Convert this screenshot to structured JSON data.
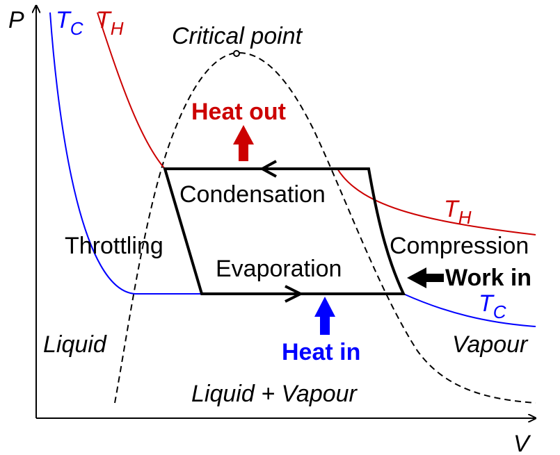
{
  "axes": {
    "x_label": "V",
    "y_label": "P"
  },
  "isotherms": {
    "cold": {
      "symbol": "T",
      "subscript": "C",
      "color": "#0000ff"
    },
    "hot": {
      "symbol": "T",
      "subscript": "H",
      "color": "#cc0000"
    }
  },
  "labels": {
    "critical_point": "Critical point",
    "condensation": "Condensation",
    "throttling": "Throttling",
    "evaporation": "Evaporation",
    "compression": "Compression",
    "liquid": "Liquid",
    "vapour": "Vapour",
    "liquid_vapour": "Liquid + Vapour"
  },
  "flows": {
    "heat_out": {
      "label": "Heat out",
      "color": "#cc0000"
    },
    "heat_in": {
      "label": "Heat in",
      "color": "#0000ff"
    },
    "work_in": {
      "label": "Work in",
      "color": "#000000"
    }
  },
  "colors": {
    "cycle": "#000000",
    "saturation_dome": "#000000",
    "axes": "#000000"
  }
}
